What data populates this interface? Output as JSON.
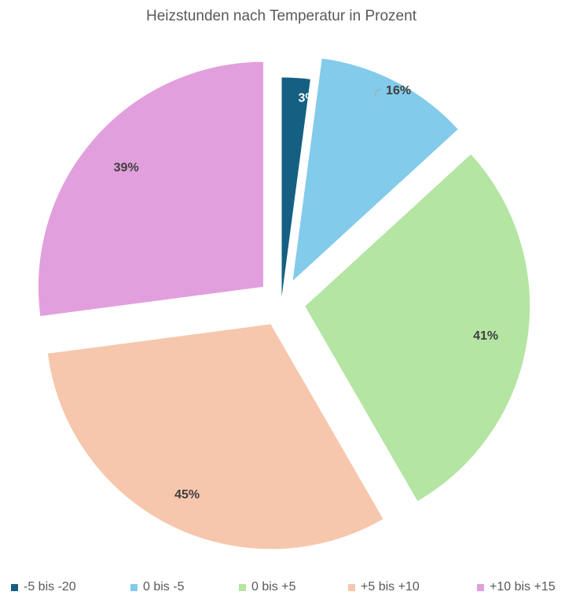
{
  "chart_data": {
    "type": "pie",
    "title": "Heizstunden nach Temperatur in Prozent",
    "categories": [
      "-5 bis -20",
      "0 bis -5",
      "0 bis +5",
      "+5 bis +10",
      "+10 bis +15"
    ],
    "values": [
      3,
      16,
      41,
      45,
      39
    ],
    "labels": [
      "3%",
      "16%",
      "41%",
      "45%",
      "39%"
    ],
    "colors": [
      "#156082",
      "#83CBEB",
      "#B4E5A2",
      "#F6C7AD",
      "#E29FDD"
    ],
    "label_colors": [
      "#FFFFFF",
      "#404040",
      "#404040",
      "#404040",
      "#404040"
    ],
    "exploded": [
      false,
      true,
      true,
      true,
      true
    ],
    "legend_position": "bottom"
  }
}
